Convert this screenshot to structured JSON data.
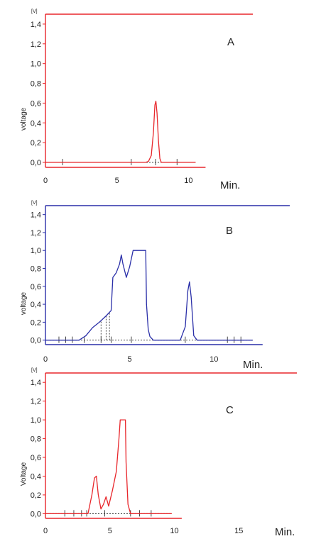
{
  "chart_data": [
    {
      "type": "line",
      "panel_label": "A",
      "color": "#e8262b",
      "unit": "[V]",
      "ylabel": "voltage",
      "xlabel": "Min.",
      "xlim": [
        0,
        14.5
      ],
      "ylim": [
        -0.05,
        1.5
      ],
      "x_ticks": [
        "0",
        "5",
        "10"
      ],
      "x_tick_values": [
        0,
        5,
        10
      ],
      "y_ticks": [
        "0,0",
        "0,2",
        "0,4",
        "0,6",
        "0,8",
        "1,0",
        "1,2",
        "1,4"
      ],
      "y_tick_values": [
        0,
        0.2,
        0.4,
        0.6,
        0.8,
        1.0,
        1.2,
        1.4
      ],
      "trace_x_end": 10.5,
      "series": [
        {
          "x": [
            0,
            7.0,
            7.2,
            7.4,
            7.55,
            7.65,
            7.72,
            7.8,
            7.9,
            8.0,
            8.1,
            10.5
          ],
          "y": [
            0,
            0,
            0.01,
            0.07,
            0.3,
            0.58,
            0.62,
            0.5,
            0.22,
            0.04,
            0,
            0
          ]
        }
      ],
      "markers": [
        1.2,
        6.0,
        7.7,
        9.2
      ]
    },
    {
      "type": "line",
      "panel_label": "B",
      "color": "#2a2fa8",
      "unit": "[V]",
      "ylabel": "voltage",
      "xlabel": "Min.",
      "xlim": [
        0,
        14.5
      ],
      "ylim": [
        -0.05,
        1.5
      ],
      "x_ticks": [
        "0",
        "5",
        "10"
      ],
      "x_tick_values": [
        0,
        5,
        10
      ],
      "y_ticks": [
        "0,0",
        "0,2",
        "0,4",
        "0,6",
        "0,8",
        "1,0",
        "1,2",
        "1,4"
      ],
      "y_tick_values": [
        0,
        0.2,
        0.4,
        0.6,
        0.8,
        1.0,
        1.2,
        1.4
      ],
      "trace_x_end": 12.3,
      "series": [
        {
          "x": [
            0,
            2.0,
            2.4,
            2.8,
            3.2,
            3.6,
            3.9,
            4.0,
            4.2,
            4.4,
            4.5,
            4.6,
            4.8,
            5.0,
            5.2,
            5.4,
            5.6,
            5.8,
            5.95,
            6.0,
            6.1,
            6.2,
            6.4,
            8.0,
            8.3,
            8.45,
            8.55,
            8.65,
            8.8,
            9.0,
            12.3
          ],
          "y": [
            0,
            0,
            0.05,
            0.14,
            0.2,
            0.27,
            0.33,
            0.7,
            0.75,
            0.85,
            0.95,
            0.85,
            0.7,
            0.82,
            1.0,
            1.0,
            1.0,
            1.0,
            1.0,
            0.4,
            0.12,
            0.04,
            0,
            0,
            0.15,
            0.55,
            0.65,
            0.48,
            0.05,
            0,
            0
          ]
        }
      ],
      "markers": [
        0.8,
        1.2,
        1.6,
        2.3,
        3.3,
        3.9,
        5.1,
        8.3,
        10.8,
        11.2,
        11.6
      ],
      "dotted_drops": [
        3.3,
        3.6,
        3.8
      ]
    },
    {
      "type": "line",
      "panel_label": "C",
      "color": "#e8262b",
      "unit": "[V]",
      "ylabel": "Voltage",
      "xlabel": "Min.",
      "xlim": [
        0,
        19.5
      ],
      "ylim": [
        -0.05,
        1.5
      ],
      "x_ticks": [
        "0",
        "5",
        "10",
        "15"
      ],
      "x_tick_values": [
        0,
        5,
        10,
        15
      ],
      "y_ticks": [
        "0,0",
        "0,2",
        "0,4",
        "0,6",
        "0,8",
        "1,0",
        "1,2",
        "1,4"
      ],
      "y_tick_values": [
        0,
        0.2,
        0.4,
        0.6,
        0.8,
        1.0,
        1.2,
        1.4
      ],
      "trace_x_end": 9.8,
      "series": [
        {
          "x": [
            0,
            3.3,
            3.6,
            3.8,
            3.95,
            4.1,
            4.3,
            4.5,
            4.7,
            4.9,
            5.2,
            5.5,
            5.7,
            5.8,
            6.2,
            6.25,
            6.4,
            6.6,
            9.8
          ],
          "y": [
            0,
            0,
            0.2,
            0.38,
            0.4,
            0.2,
            0.05,
            0.1,
            0.18,
            0.08,
            0.25,
            0.45,
            0.8,
            1.0,
            1.0,
            0.55,
            0.1,
            0,
            0
          ]
        }
      ],
      "markers": [
        1.5,
        2.2,
        2.8,
        3.2,
        4.6,
        6.6,
        7.3,
        8.2
      ]
    }
  ]
}
